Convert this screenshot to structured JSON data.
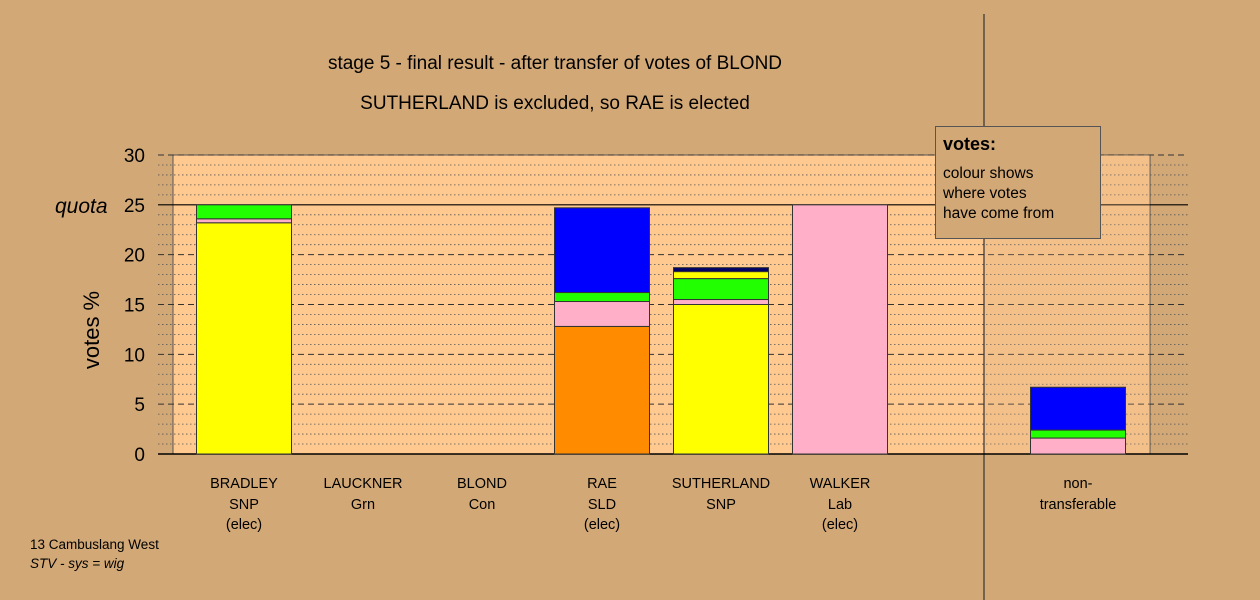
{
  "title_line1": "stage 5 - final result - after transfer of votes of BLOND",
  "title_line2": "SUTHERLAND is excluded, so RAE is elected",
  "ylabel": "votes %",
  "quota_label": "quota",
  "legend": {
    "title": "votes:",
    "lines": [
      "colour shows",
      "where votes",
      "have come from"
    ]
  },
  "footer": {
    "line1": "13 Cambuslang West",
    "line2": "STV - sys = wig"
  },
  "colors": {
    "background": "#d2a877",
    "plot_background": "#ffc990",
    "yellow": "#ffff00",
    "pink": "#ffb0c8",
    "green": "#22ff00",
    "blue": "#0000ff",
    "orange": "#ff8c00",
    "navy": "#000066"
  },
  "chart_data": {
    "type": "bar",
    "stacked": true,
    "ylim": [
      0,
      30
    ],
    "yticks": [
      0,
      5,
      10,
      15,
      20,
      25,
      30
    ],
    "quota": 25,
    "grid": true,
    "candidates": [
      {
        "name": "BRADLEY",
        "party": "SNP",
        "status": "(elec)",
        "segments": [
          {
            "color": "yellow",
            "value": 23.2
          },
          {
            "color": "pink",
            "value": 0.4
          },
          {
            "color": "green",
            "value": 1.4
          }
        ]
      },
      {
        "name": "LAUCKNER",
        "party": "Grn",
        "status": "",
        "segments": []
      },
      {
        "name": "BLOND",
        "party": "Con",
        "status": "",
        "segments": []
      },
      {
        "name": "RAE",
        "party": "SLD",
        "status": "(elec)",
        "segments": [
          {
            "color": "orange",
            "value": 12.8
          },
          {
            "color": "pink",
            "value": 2.5
          },
          {
            "color": "green",
            "value": 0.9
          },
          {
            "color": "blue",
            "value": 8.5
          }
        ]
      },
      {
        "name": "SUTHERLAND",
        "party": "SNP",
        "status": "",
        "segments": [
          {
            "color": "yellow",
            "value": 15.0
          },
          {
            "color": "pink",
            "value": 0.5
          },
          {
            "color": "green",
            "value": 2.1
          },
          {
            "color": "yellow",
            "value": 0.7
          },
          {
            "color": "navy",
            "value": 0.4
          }
        ]
      },
      {
        "name": "WALKER",
        "party": "Lab",
        "status": "(elec)",
        "segments": [
          {
            "color": "pink",
            "value": 25.0
          }
        ]
      }
    ],
    "nontransferable": {
      "label_line1": "non-",
      "label_line2": "transferable",
      "segments": [
        {
          "color": "pink",
          "value": 1.6
        },
        {
          "color": "green",
          "value": 0.8
        },
        {
          "color": "blue",
          "value": 4.3
        }
      ]
    }
  }
}
